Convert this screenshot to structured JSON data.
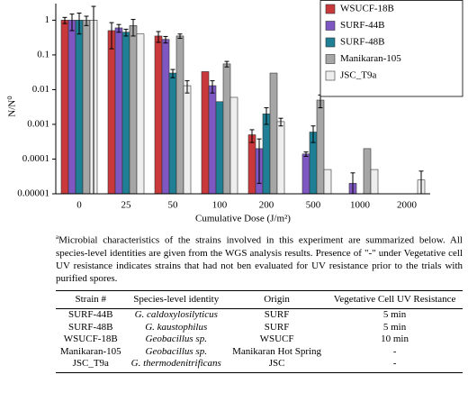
{
  "chart_data": {
    "type": "bar",
    "y_label": "N/N⁰",
    "x_label": "Cumulative Dose (J/m²)",
    "categories": [
      "0",
      "25",
      "50",
      "100",
      "200",
      "500",
      "1000",
      "2000"
    ],
    "log_scale": true,
    "legend": "upper right",
    "ylim": [
      1e-05,
      3
    ],
    "yticks": [
      1e-05,
      0.0001,
      0.001,
      0.01,
      0.1,
      1
    ],
    "series": [
      {
        "name": "WSUCF-18B",
        "color": "#c9383a",
        "values": [
          1,
          0.5,
          0.35,
          0.033,
          0.0005,
          null,
          null,
          null
        ],
        "errors": [
          0.2,
          0.35,
          0.12,
          null,
          0.0002,
          null,
          null,
          null
        ]
      },
      {
        "name": "SURF-44B",
        "color": "#7e57c2",
        "values": [
          1,
          0.6,
          0.28,
          0.013,
          0.0002,
          0.00014,
          2e-05,
          null
        ],
        "errors": [
          0.5,
          0.15,
          0.06,
          0.005,
          0.00018,
          2e-05,
          2e-05,
          null
        ]
      },
      {
        "name": "SURF-48B",
        "color": "#1f7f95",
        "values": [
          1,
          0.45,
          0.03,
          0.0045,
          0.002,
          0.0006,
          null,
          null
        ],
        "errors": [
          0.6,
          0.1,
          0.008,
          null,
          0.001,
          0.0003,
          null,
          null
        ]
      },
      {
        "name": "Manikaran-105",
        "color": "#a6a6a6",
        "values": [
          1,
          0.7,
          0.35,
          0.055,
          0.03,
          0.005,
          0.0002,
          null
        ],
        "errors": [
          0.3,
          0.35,
          0.05,
          0.01,
          null,
          0.002,
          null,
          null
        ]
      },
      {
        "name": "JSC_T9a",
        "color": "#eeeeee",
        "values": [
          1,
          0.4,
          0.013,
          0.006,
          0.0012,
          5e-05,
          5e-05,
          2.5e-05
        ],
        "errors": [
          1.5,
          null,
          0.005,
          null,
          0.0003,
          null,
          null,
          2e-05
        ]
      }
    ]
  },
  "caption": {
    "marker": "a",
    "text": "Microbial characteristics of the strains involved in this experiment are summarized below. All species-level identities are given from the WGS analysis results. Presence of \"-\" under Vegetative cell UV resistance indicates strains that had not ben evaluated for UV resistance prior to the trials with purified spores."
  },
  "table": {
    "header": [
      "Strain #",
      "Species-level identity",
      "Origin",
      "Vegetative Cell UV Resistance"
    ],
    "rows": [
      [
        "SURF-44B",
        "G. caldoxylosilyticus",
        "SURF",
        "5 min"
      ],
      [
        "SURF-48B",
        "G. kaustophilus",
        "SURF",
        "5 min"
      ],
      [
        "WSUCF-18B",
        "Geobacillus sp.",
        "WSUCF",
        "10 min"
      ],
      [
        "Manikaran-105",
        "Geobacillus sp.",
        "Manikaran Hot Spring",
        "-"
      ],
      [
        "JSC_T9a",
        "G. thermodenitrificans",
        "JSC",
        "-"
      ]
    ]
  }
}
